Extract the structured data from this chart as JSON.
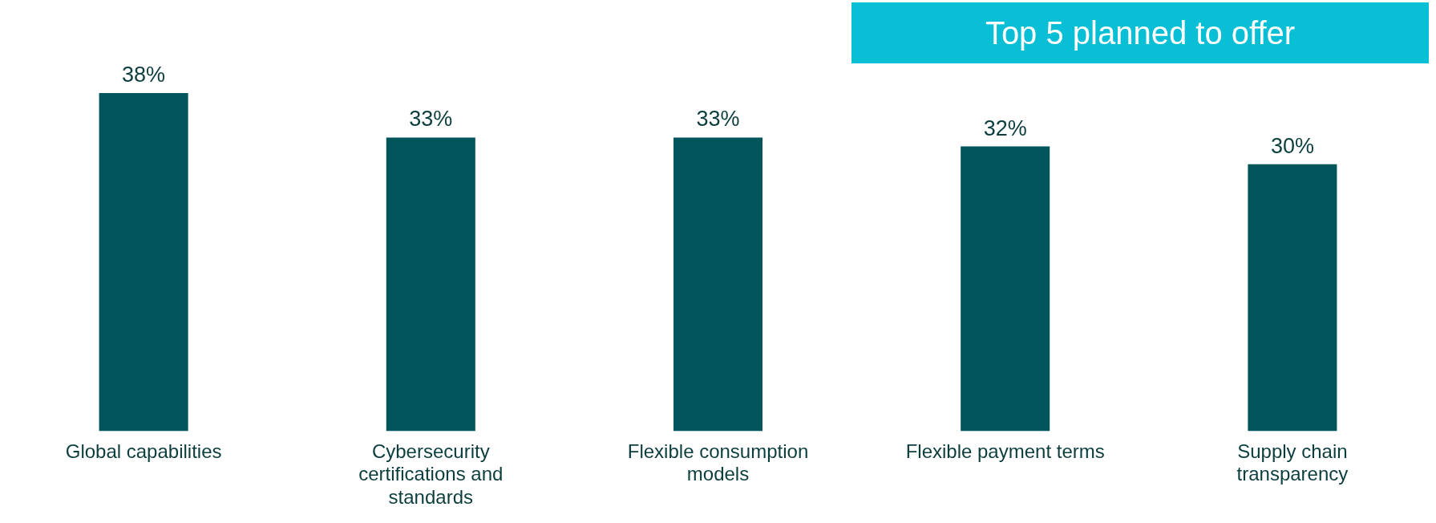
{
  "chart_data": {
    "type": "bar",
    "title": "Top 5 planned to offer",
    "categories": [
      "Global capabilities",
      "Cybersecurity certifications and standards",
      "Flexible consumption models",
      "Flexible payment terms",
      "Supply chain transparency"
    ],
    "values": [
      38,
      33,
      33,
      32,
      30
    ],
    "color": "#00555a",
    "value_labels": [
      "38%",
      "33%",
      "33%",
      "32%",
      "30%"
    ],
    "relative": false,
    "grid": false,
    "legend": false
  }
}
